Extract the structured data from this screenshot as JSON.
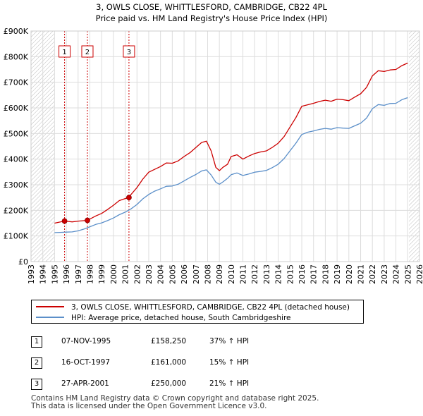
{
  "chart_data": {
    "type": "line",
    "title": "3, OWLS CLOSE, WHITTLESFORD, CAMBRIDGE, CB22 4PL",
    "subtitle": "Price paid vs. HM Land Registry's House Price Index (HPI)",
    "xlabel": "",
    "ylabel": "",
    "xlim": [
      1993,
      2026
    ],
    "ylim": [
      0,
      900000
    ],
    "x_ticks": [
      "1993",
      "1994",
      "1995",
      "1996",
      "1997",
      "1998",
      "1999",
      "2000",
      "2001",
      "2002",
      "2003",
      "2004",
      "2005",
      "2006",
      "2007",
      "2008",
      "2009",
      "2010",
      "2011",
      "2012",
      "2013",
      "2014",
      "2015",
      "2016",
      "2017",
      "2018",
      "2019",
      "2020",
      "2021",
      "2022",
      "2023",
      "2024",
      "2025",
      "2026"
    ],
    "y_ticks": [
      {
        "value": 0,
        "label": "£0"
      },
      {
        "value": 100000,
        "label": "£100K"
      },
      {
        "value": 200000,
        "label": "£200K"
      },
      {
        "value": 300000,
        "label": "£300K"
      },
      {
        "value": 400000,
        "label": "£400K"
      },
      {
        "value": 500000,
        "label": "£500K"
      },
      {
        "value": 600000,
        "label": "£600K"
      },
      {
        "value": 700000,
        "label": "£700K"
      },
      {
        "value": 800000,
        "label": "£800K"
      },
      {
        "value": 900000,
        "label": "£900K"
      }
    ],
    "data_range": [
      1995.0,
      2025.1
    ],
    "series": [
      {
        "name": "3, OWLS CLOSE, WHITTLESFORD, CAMBRIDGE, CB22 4PL (detached house)",
        "color": "#cc0000",
        "x": [
          1995.0,
          1995.85,
          1996.5,
          1997.0,
          1997.79,
          1998.5,
          1999.0,
          1999.5,
          2000.0,
          2000.5,
          2001.0,
          2001.32,
          2001.5,
          2002.0,
          2002.5,
          2003.0,
          2003.5,
          2004.0,
          2004.5,
          2005.0,
          2005.5,
          2006.0,
          2006.5,
          2007.0,
          2007.5,
          2007.9,
          2008.3,
          2008.7,
          2009.0,
          2009.3,
          2009.7,
          2010.0,
          2010.5,
          2011.0,
          2011.5,
          2012.0,
          2012.5,
          2013.0,
          2013.5,
          2014.0,
          2014.5,
          2015.0,
          2015.5,
          2016.0,
          2016.5,
          2017.0,
          2017.5,
          2018.0,
          2018.5,
          2019.0,
          2019.5,
          2020.0,
          2020.5,
          2021.0,
          2021.5,
          2022.0,
          2022.5,
          2023.0,
          2023.5,
          2024.0,
          2024.5,
          2025.0
        ],
        "values": [
          150000,
          158250,
          155000,
          158000,
          161000,
          178000,
          188000,
          203000,
          220000,
          238000,
          246000,
          250000,
          262000,
          289000,
          322000,
          349000,
          360000,
          371000,
          385000,
          384000,
          393000,
          410000,
          425000,
          445000,
          465000,
          470000,
          432000,
          368000,
          355000,
          368000,
          380000,
          410000,
          417000,
          400000,
          412000,
          422000,
          428000,
          432000,
          446000,
          462000,
          488000,
          525000,
          562000,
          606000,
          612000,
          618000,
          625000,
          630000,
          626000,
          634000,
          632000,
          628000,
          642000,
          655000,
          680000,
          725000,
          745000,
          742000,
          748000,
          750000,
          765000,
          775000
        ]
      },
      {
        "name": "HPI: Average price, detached house, South Cambridgeshire",
        "color": "#5b8fc9",
        "x": [
          1995.0,
          1995.5,
          1996.0,
          1996.5,
          1997.0,
          1997.5,
          1998.0,
          1998.5,
          1999.0,
          1999.5,
          2000.0,
          2000.5,
          2001.0,
          2001.5,
          2002.0,
          2002.5,
          2003.0,
          2003.5,
          2004.0,
          2004.5,
          2005.0,
          2005.5,
          2006.0,
          2006.5,
          2007.0,
          2007.5,
          2007.9,
          2008.3,
          2008.7,
          2009.0,
          2009.3,
          2009.7,
          2010.0,
          2010.5,
          2011.0,
          2011.5,
          2012.0,
          2012.5,
          2013.0,
          2013.5,
          2014.0,
          2014.5,
          2015.0,
          2015.5,
          2016.0,
          2016.5,
          2017.0,
          2017.5,
          2018.0,
          2018.5,
          2019.0,
          2019.5,
          2020.0,
          2020.5,
          2021.0,
          2021.5,
          2022.0,
          2022.5,
          2023.0,
          2023.5,
          2024.0,
          2024.5,
          2025.0
        ],
        "values": [
          113000,
          114000,
          115000,
          116000,
          120000,
          127000,
          136000,
          145000,
          151000,
          160000,
          170000,
          183000,
          193000,
          206000,
          223000,
          245000,
          262000,
          275000,
          284000,
          294000,
          295000,
          302000,
          315000,
          328000,
          340000,
          354000,
          358000,
          338000,
          310000,
          302000,
          311000,
          325000,
          339000,
          346000,
          336000,
          342000,
          349000,
          352000,
          356000,
          367000,
          380000,
          402000,
          432000,
          462000,
          496000,
          505000,
          510000,
          516000,
          520000,
          517000,
          523000,
          521000,
          520000,
          530000,
          540000,
          560000,
          597000,
          613000,
          610000,
          617000,
          618000,
          632000,
          640000
        ]
      }
    ],
    "sales": [
      {
        "num": "1",
        "x": 1995.85,
        "value": 158250,
        "date": "07-NOV-1995",
        "price": "£158,250",
        "pct": "37% ↑ HPI"
      },
      {
        "num": "2",
        "x": 1997.79,
        "value": 161000,
        "date": "16-OCT-1997",
        "price": "£161,000",
        "pct": "15% ↑ HPI"
      },
      {
        "num": "3",
        "x": 2001.32,
        "value": 250000,
        "date": "27-APR-2001",
        "price": "£250,000",
        "pct": "21% ↑ HPI"
      }
    ]
  },
  "legend": {
    "line1": "3, OWLS CLOSE, WHITTLESFORD, CAMBRIDGE, CB22 4PL (detached house)",
    "line2": "HPI: Average price, detached house, South Cambridgeshire",
    "line1_color": "#cc0000",
    "line2_color": "#5b8fc9"
  },
  "footer": {
    "line1": "Contains HM Land Registry data © Crown copyright and database right 2025.",
    "line2": "This data is licensed under the Open Government Licence v3.0."
  },
  "colors": {
    "grid": "#dddddd",
    "hatch": "#bbbbbb",
    "marker_border": "#cc0000"
  }
}
